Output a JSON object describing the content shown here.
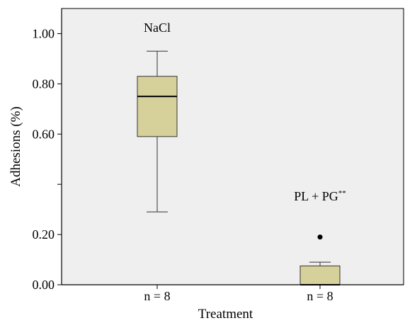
{
  "chart_data": {
    "type": "box",
    "xlabel": "Treatment",
    "ylabel": "Adhesions (%)",
    "ylim": [
      0,
      1.1
    ],
    "yticks": [
      {
        "value": 0.0,
        "label": "0.00"
      },
      {
        "value": 0.2,
        "label": "0.20"
      },
      {
        "value": 0.4,
        "label": ""
      },
      {
        "value": 0.6,
        "label": "0.60"
      },
      {
        "value": 0.8,
        "label": "0.80"
      },
      {
        "value": 1.0,
        "label": "1.00"
      }
    ],
    "grid": false,
    "groups": [
      {
        "category": "n = 8",
        "annotation": "NaCl",
        "annotation_sup": "",
        "min": 0.29,
        "q1": 0.59,
        "median": 0.75,
        "q3": 0.83,
        "max": 0.93,
        "outliers": []
      },
      {
        "category": "n = 8",
        "annotation": "PL + PG",
        "annotation_sup": "**",
        "min": 0.0,
        "q1": 0.0,
        "median": 0.0,
        "q3": 0.075,
        "max": 0.09,
        "outliers": [
          0.19
        ]
      }
    ],
    "colors": {
      "plot_background": "#efefef",
      "box_fill": "#d6d09a",
      "line": "#333333",
      "median_line": "#000000"
    }
  }
}
